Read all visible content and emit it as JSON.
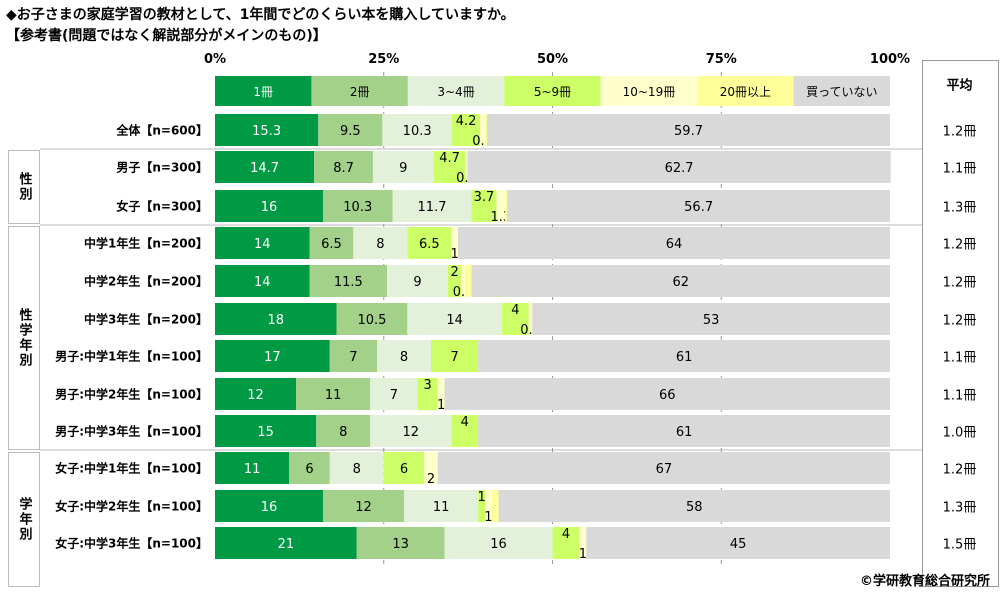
{
  "title_line1": "◆お子さまの家庭学習の教材として、1年間でどのくらい本を購入していますか。",
  "title_line2": "【参考書(問題ではなく解説部分がメインのもの)】",
  "copyright": "©学研教育総合研究所",
  "avg_header": "平均",
  "groups": [
    "性別",
    "性学年別",
    "学年別"
  ],
  "chart_data": {
    "type": "bar",
    "orientation": "horizontal-stacked-100",
    "xlim": [
      0,
      100
    ],
    "xticks": [
      "0%",
      "25%",
      "50%",
      "75%",
      "100%"
    ],
    "legend": [
      "1冊",
      "2冊",
      "3~4冊",
      "5~9冊",
      "10~19冊",
      "20冊以上",
      "買っていない"
    ],
    "colors": [
      "#009944",
      "#a3d18a",
      "#e3f1da",
      "#ccff66",
      "#ffffcc",
      "#ffff99",
      "#d9d9d9"
    ],
    "categories": [
      "全体【n=600】",
      "男子【n=300】",
      "女子【n=300】",
      "中学1年生【n=200】",
      "中学2年生【n=200】",
      "中学3年生【n=200】",
      "男子:中学1年生【n=100】",
      "男子:中学2年生【n=100】",
      "男子:中学3年生【n=100】",
      "女子:中学1年生【n=100】",
      "女子:中学2年生【n=100】",
      "女子:中学3年生【n=100】"
    ],
    "series": [
      {
        "name": "1冊",
        "values": [
          15.3,
          14.7,
          16.0,
          14.0,
          14.0,
          18.0,
          17.0,
          12.0,
          15.0,
          11.0,
          16.0,
          21.0
        ]
      },
      {
        "name": "2冊",
        "values": [
          9.5,
          8.7,
          10.3,
          6.5,
          11.5,
          10.5,
          7.0,
          11.0,
          8.0,
          6.0,
          12.0,
          13.0
        ]
      },
      {
        "name": "3~4冊",
        "values": [
          10.3,
          9.0,
          11.7,
          8.0,
          9.0,
          14.0,
          8.0,
          7.0,
          12.0,
          8.0,
          11.0,
          16.0
        ]
      },
      {
        "name": "5~9冊",
        "values": [
          4.2,
          4.7,
          3.7,
          6.5,
          2.0,
          4.0,
          7.0,
          3.0,
          4.0,
          6.0,
          1.0,
          4.0
        ]
      },
      {
        "name": "10~19冊",
        "values": [
          0.7,
          0.3,
          1.3,
          1.0,
          0.5,
          0.5,
          0,
          1.0,
          0,
          2.0,
          1.0,
          1.0
        ]
      },
      {
        "name": "20冊以上",
        "values": [
          0.3,
          0,
          0.3,
          0,
          1.0,
          0,
          0,
          0,
          0,
          0,
          1.0,
          0
        ]
      },
      {
        "name": "買っていない",
        "values": [
          59.7,
          62.7,
          56.7,
          64.0,
          62.0,
          53.0,
          61.0,
          66.0,
          61.0,
          67.0,
          58.0,
          45.0
        ]
      }
    ],
    "averages": [
      "1.2冊",
      "1.1冊",
      "1.3冊",
      "1.2冊",
      "1.2冊",
      "1.2冊",
      "1.1冊",
      "1.1冊",
      "1.0冊",
      "1.2冊",
      "1.3冊",
      "1.5冊"
    ]
  }
}
